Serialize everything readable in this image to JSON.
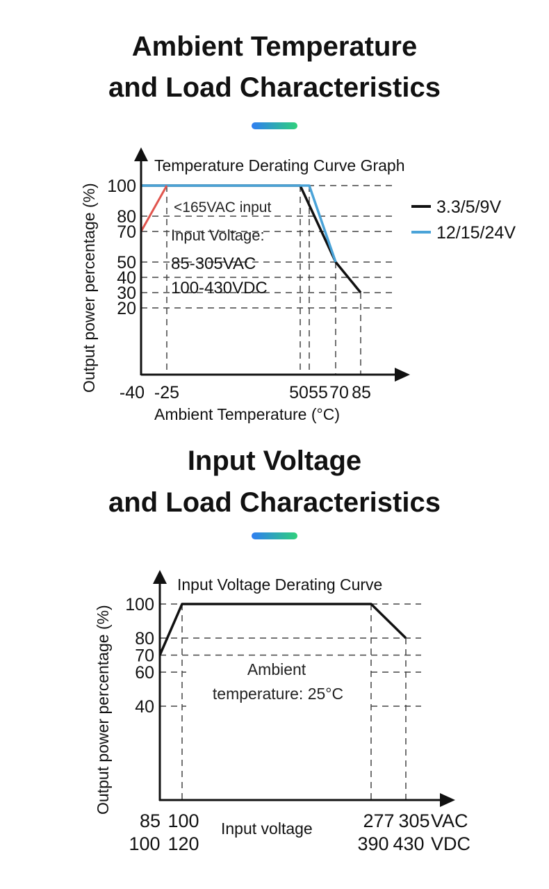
{
  "section1": {
    "title_line1": "Ambient Temperature",
    "title_line2": "and Load Characteristics"
  },
  "section2": {
    "title_line1": "Input Voltage",
    "title_line2": "and Load Characteristics"
  },
  "accent_gradient": [
    "#2f7ef2",
    "#2fd07c"
  ],
  "chart_data": [
    {
      "type": "line",
      "title": "Temperature Derating Curve Graph",
      "xlabel": "Ambient Temperature (°C)",
      "ylabel": "Output power percentage (%)",
      "x_ticks": [
        "-40",
        "-25",
        "50",
        "55",
        "70",
        "85"
      ],
      "y_ticks": [
        "100",
        "80",
        "70",
        "50",
        "40",
        "30",
        "20"
      ],
      "grid": "dashed",
      "legend_position": "right",
      "annotations": {
        "low_line": "<165VAC input",
        "input_label": "Input Voltage:",
        "ac_range": "85-305VAC",
        "dc_range": "100-430VDC"
      },
      "series": [
        {
          "name": "3.3/5/9V",
          "color": "#111111",
          "x": [
            -40,
            50,
            70,
            85
          ],
          "y": [
            100,
            100,
            50,
            30
          ]
        },
        {
          "name": "12/15/24V",
          "color": "#4aa3d8",
          "x": [
            -40,
            55,
            70
          ],
          "y": [
            100,
            100,
            50
          ]
        },
        {
          "name": "<165VAC input",
          "color": "#e0554e",
          "x": [
            -40,
            -25
          ],
          "y": [
            70,
            100
          ]
        }
      ]
    },
    {
      "type": "line",
      "title": "Input Voltage Derating Curve",
      "xlabel": "Input voltage",
      "ylabel": "Output power percentage (%)",
      "x_ticks_ac": [
        "85",
        "100",
        "277",
        "305"
      ],
      "x_ticks_dc": [
        "100",
        "120",
        "390",
        "430"
      ],
      "x_unit_ac": "VAC",
      "x_unit_dc": "VDC",
      "y_ticks": [
        "100",
        "80",
        "70",
        "60",
        "40"
      ],
      "grid": "dashed",
      "annotations": {
        "ambient_line1": "Ambient",
        "ambient_line2": "temperature: 25°C"
      },
      "series": [
        {
          "color": "#111111",
          "x": [
            85,
            100,
            277,
            305
          ],
          "y": [
            70,
            100,
            100,
            80
          ]
        }
      ]
    }
  ]
}
